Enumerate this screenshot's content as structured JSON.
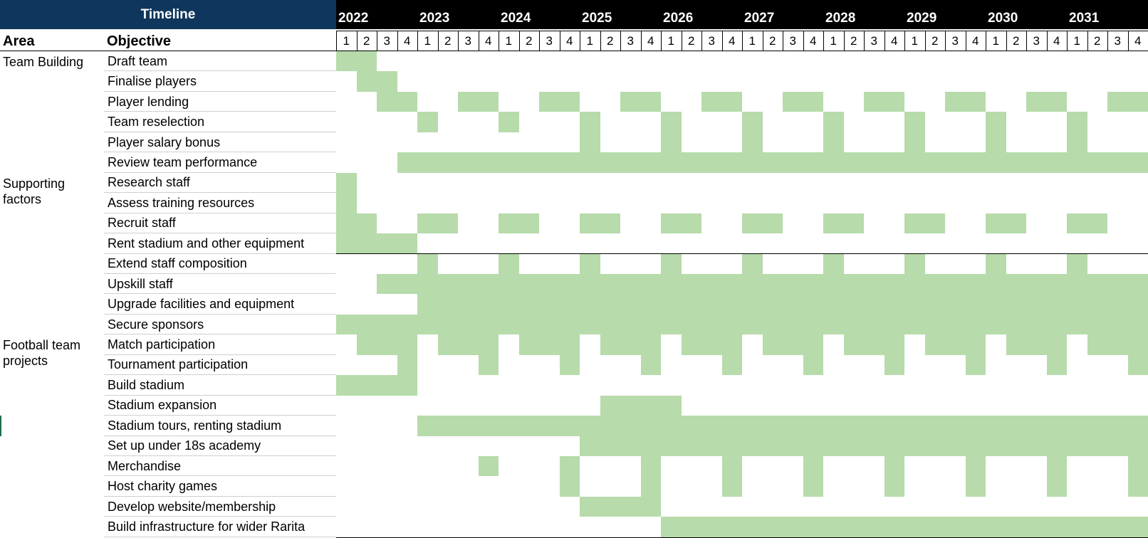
{
  "header": {
    "timeline_label": "Timeline",
    "area_col": "Area",
    "objective_col": "Objective"
  },
  "years": [
    "2022",
    "2023",
    "2024",
    "2025",
    "2026",
    "2027",
    "2028",
    "2029",
    "2030",
    "2031"
  ],
  "quarters": [
    "1",
    "2",
    "3",
    "4"
  ],
  "areas": [
    {
      "label": "Team Building",
      "row": 0
    },
    {
      "label": "Supporting factors",
      "row": 6
    },
    {
      "label": "Football team projects",
      "row": 14
    }
  ],
  "colors": {
    "fill": "#b7dbab",
    "timeline_bg": "#0f365c",
    "year_bg": "#000000"
  },
  "rows": [
    {
      "objective": "Draft team",
      "filled": [
        0,
        1
      ]
    },
    {
      "objective": "Finalise players",
      "filled": [
        1,
        2
      ]
    },
    {
      "objective": "Player lending",
      "filled": [
        2,
        3,
        6,
        7,
        10,
        11,
        14,
        15,
        18,
        19,
        22,
        23,
        26,
        27,
        30,
        31,
        34,
        35,
        38,
        39
      ]
    },
    {
      "objective": "Team reselection",
      "filled": [
        4,
        8,
        12,
        16,
        20,
        24,
        28,
        32,
        36
      ]
    },
    {
      "objective": "Player salary bonus",
      "filled": [
        12,
        16,
        20,
        24,
        28,
        32,
        36
      ]
    },
    {
      "objective": "Review team performance",
      "filled": [
        3,
        4,
        5,
        6,
        7,
        8,
        9,
        10,
        11,
        12,
        13,
        14,
        15,
        16,
        17,
        18,
        19,
        20,
        21,
        22,
        23,
        24,
        25,
        26,
        27,
        28,
        29,
        30,
        31,
        32,
        33,
        34,
        35,
        36,
        37,
        38,
        39
      ]
    },
    {
      "objective": "Research staff",
      "filled": [
        0
      ]
    },
    {
      "objective": "Assess training resources",
      "filled": [
        0
      ]
    },
    {
      "objective": "Recruit staff",
      "filled": [
        0,
        1,
        4,
        5,
        8,
        9,
        12,
        13,
        16,
        17,
        20,
        21,
        24,
        25,
        28,
        29,
        32,
        33,
        36,
        37
      ]
    },
    {
      "objective": "Rent stadium and other equipment",
      "filled": [
        0,
        1,
        2,
        3
      ]
    },
    {
      "objective": "Extend staff composition",
      "filled": [
        4,
        8,
        12,
        16,
        20,
        24,
        28,
        32,
        36
      ]
    },
    {
      "objective": "Upskill staff",
      "filled": [
        2,
        3,
        4,
        5,
        6,
        7,
        8,
        9,
        10,
        11,
        12,
        13,
        14,
        15,
        16,
        17,
        18,
        19,
        20,
        21,
        22,
        23,
        24,
        25,
        26,
        27,
        28,
        29,
        30,
        31,
        32,
        33,
        34,
        35,
        36,
        37,
        38,
        39
      ]
    },
    {
      "objective": "Upgrade facilities and equipment",
      "filled": [
        4,
        5,
        6,
        7,
        8,
        9,
        10,
        11,
        12,
        13,
        14,
        15,
        16,
        17,
        18,
        19,
        20,
        21,
        22,
        23,
        24,
        25,
        26,
        27,
        28,
        29,
        30,
        31,
        32,
        33,
        34,
        35,
        36,
        37,
        38,
        39
      ]
    },
    {
      "objective": "Secure sponsors",
      "filled": [
        0,
        1,
        2,
        3,
        4,
        5,
        6,
        7,
        8,
        9,
        10,
        11,
        12,
        13,
        14,
        15,
        16,
        17,
        18,
        19,
        20,
        21,
        22,
        23,
        24,
        25,
        26,
        27,
        28,
        29,
        30,
        31,
        32,
        33,
        34,
        35,
        36,
        37,
        38,
        39
      ]
    },
    {
      "objective": "Match participation",
      "filled": [
        1,
        2,
        3,
        5,
        6,
        7,
        9,
        10,
        11,
        13,
        14,
        15,
        17,
        18,
        19,
        21,
        22,
        23,
        25,
        26,
        27,
        29,
        30,
        31,
        33,
        34,
        35,
        37,
        38,
        39
      ]
    },
    {
      "objective": "Tournament participation",
      "filled": [
        3,
        7,
        11,
        15,
        19,
        23,
        27,
        31,
        35,
        39
      ]
    },
    {
      "objective": "Build stadium",
      "filled": [
        0,
        1,
        2,
        3
      ]
    },
    {
      "objective": "Stadium expansion",
      "filled": [
        13,
        14,
        15,
        16
      ]
    },
    {
      "objective": "Stadium tours, renting stadium",
      "filled": [
        4,
        5,
        6,
        7,
        8,
        9,
        10,
        11,
        12,
        13,
        14,
        15,
        16,
        17,
        18,
        19,
        20,
        21,
        22,
        23,
        24,
        25,
        26,
        27,
        28,
        29,
        30,
        31,
        32,
        33,
        34,
        35,
        36,
        37,
        38,
        39
      ]
    },
    {
      "objective": "Set up under 18s academy",
      "filled": [
        12,
        13,
        14,
        15,
        16,
        17,
        18,
        19,
        20,
        21,
        22,
        23,
        24,
        25,
        26,
        27,
        28,
        29,
        30,
        31,
        32,
        33,
        34,
        35,
        36,
        37,
        38,
        39
      ]
    },
    {
      "objective": "Merchandise",
      "filled": [
        7,
        11,
        15,
        19,
        23,
        27,
        31,
        35,
        39
      ]
    },
    {
      "objective": "Host charity games",
      "filled": [
        11,
        15,
        19,
        23,
        27,
        31,
        35,
        39
      ]
    },
    {
      "objective": "Develop website/membership",
      "filled": [
        12,
        13,
        14,
        15
      ]
    },
    {
      "objective": "Build infrastructure for wider Rarita",
      "filled": [
        16,
        17,
        18,
        19,
        20,
        21,
        22,
        23,
        24,
        25,
        26,
        27,
        28,
        29,
        30,
        31,
        32,
        33,
        34,
        35,
        36,
        37,
        38,
        39
      ]
    }
  ]
}
